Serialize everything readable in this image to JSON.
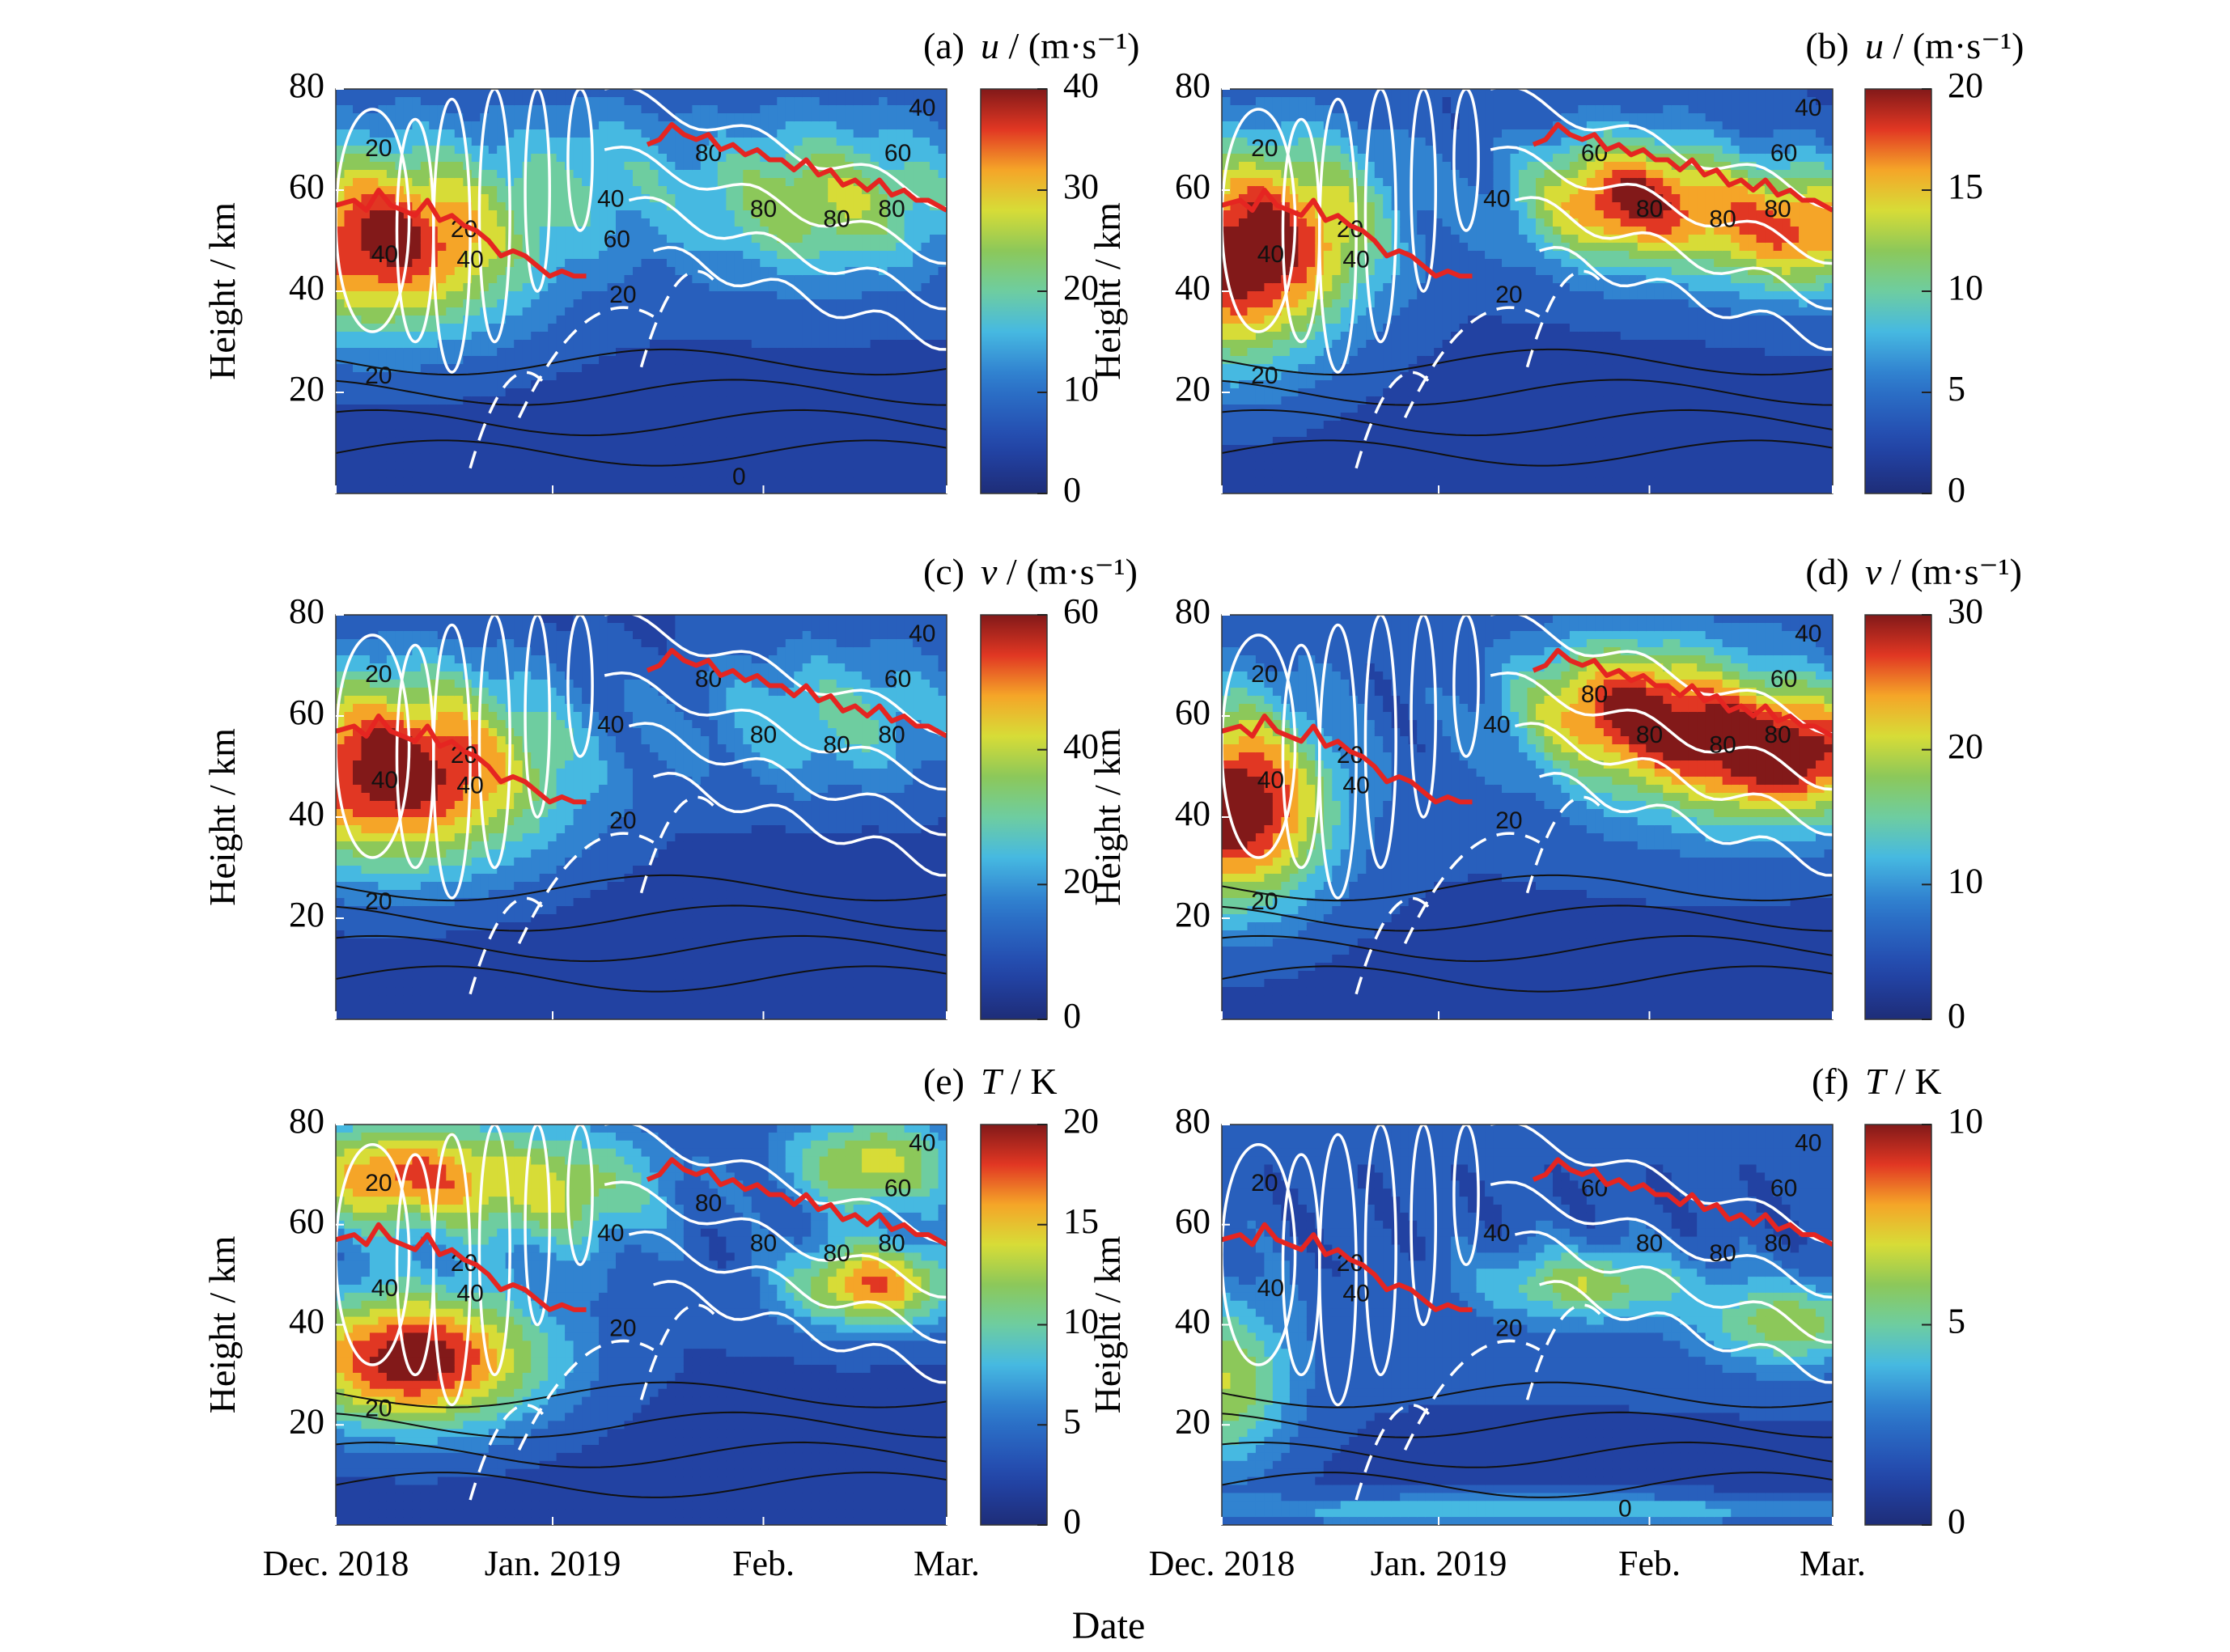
{
  "figure": {
    "xlabel": "Date",
    "ylabel": "Height / km",
    "x_ticks": [
      "Dec. 2018",
      "Jan. 2019",
      "Feb.",
      "Mar."
    ],
    "y_ticks": [
      20,
      40,
      60,
      80
    ]
  },
  "chart_data": [
    {
      "type": "heatmap",
      "panel": "(a)",
      "variable": "u",
      "unit": "/ (m·s⁻¹)",
      "colorbar": {
        "min": 0,
        "max": 40,
        "ticks": [
          0,
          10,
          20,
          30,
          40
        ]
      },
      "ylim": [
        0,
        80
      ],
      "x": [
        "Dec. 2018",
        "Jan. 2019",
        "Feb.",
        "Mar."
      ],
      "blobs": [
        {
          "t": 0.08,
          "z": 50,
          "peak": 34,
          "wt": 0.17,
          "wz": 13
        },
        {
          "t": 0.8,
          "z": 58,
          "peak": 20,
          "wt": 0.17,
          "wz": 11
        },
        {
          "t": 0.42,
          "z": 65,
          "peak": 8,
          "wt": 0.1,
          "wz": 10
        }
      ],
      "background": 6,
      "contour_labels": [
        {
          "t": 0.07,
          "z": 68,
          "text": "20"
        },
        {
          "t": 0.08,
          "z": 47,
          "text": "40"
        },
        {
          "t": 0.21,
          "z": 52,
          "text": "20"
        },
        {
          "t": 0.22,
          "z": 46,
          "text": "40"
        },
        {
          "t": 0.07,
          "z": 23,
          "text": "20"
        },
        {
          "t": 0.45,
          "z": 58,
          "text": "40"
        },
        {
          "t": 0.46,
          "z": 50,
          "text": "60"
        },
        {
          "t": 0.47,
          "z": 39,
          "text": "20"
        },
        {
          "t": 0.61,
          "z": 67,
          "text": "80"
        },
        {
          "t": 0.7,
          "z": 56,
          "text": "80"
        },
        {
          "t": 0.82,
          "z": 54,
          "text": "80"
        },
        {
          "t": 0.91,
          "z": 56,
          "text": "80"
        },
        {
          "t": 0.92,
          "z": 67,
          "text": "60"
        },
        {
          "t": 0.96,
          "z": 76,
          "text": "40"
        },
        {
          "t": 0.66,
          "z": 3,
          "text": "0"
        }
      ]
    },
    {
      "type": "heatmap",
      "panel": "(b)",
      "variable": "u",
      "unit": "/ (m·s⁻¹)",
      "colorbar": {
        "min": 0,
        "max": 20,
        "ticks": [
          0,
          5,
          10,
          15,
          20
        ]
      },
      "ylim": [
        0,
        80
      ],
      "x": [
        "Dec. 2018",
        "Jan. 2019",
        "Feb.",
        "Mar."
      ],
      "blobs": [
        {
          "t": 0.02,
          "z": 46,
          "peak": 17,
          "wt": 0.12,
          "wz": 15
        },
        {
          "t": 0.66,
          "z": 58,
          "peak": 16,
          "wt": 0.12,
          "wz": 9
        },
        {
          "t": 0.95,
          "z": 52,
          "peak": 14,
          "wt": 0.12,
          "wz": 9
        },
        {
          "t": 0.18,
          "z": 55,
          "peak": 6,
          "wt": 0.1,
          "wz": 12
        }
      ],
      "background": 3,
      "contour_labels": [
        {
          "t": 0.07,
          "z": 68,
          "text": "20"
        },
        {
          "t": 0.08,
          "z": 47,
          "text": "40"
        },
        {
          "t": 0.21,
          "z": 52,
          "text": "20"
        },
        {
          "t": 0.22,
          "z": 46,
          "text": "40"
        },
        {
          "t": 0.07,
          "z": 23,
          "text": "20"
        },
        {
          "t": 0.45,
          "z": 58,
          "text": "40"
        },
        {
          "t": 0.47,
          "z": 39,
          "text": "20"
        },
        {
          "t": 0.61,
          "z": 67,
          "text": "60"
        },
        {
          "t": 0.7,
          "z": 56,
          "text": "80"
        },
        {
          "t": 0.82,
          "z": 54,
          "text": "80"
        },
        {
          "t": 0.91,
          "z": 56,
          "text": "80"
        },
        {
          "t": 0.92,
          "z": 67,
          "text": "60"
        },
        {
          "t": 0.96,
          "z": 76,
          "text": "40"
        }
      ]
    },
    {
      "type": "heatmap",
      "panel": "(c)",
      "variable": "v",
      "unit": "/ (m·s⁻¹)",
      "colorbar": {
        "min": 0,
        "max": 60,
        "ticks": [
          0,
          20,
          40,
          60
        ]
      },
      "ylim": [
        0,
        80
      ],
      "x": [
        "Dec. 2018",
        "Jan. 2019",
        "Feb.",
        "Mar."
      ],
      "blobs": [
        {
          "t": 0.1,
          "z": 49,
          "peak": 56,
          "wt": 0.19,
          "wz": 14
        },
        {
          "t": 0.82,
          "z": 60,
          "peak": 21,
          "wt": 0.17,
          "wz": 11
        }
      ],
      "background": 7,
      "contour_labels": [
        {
          "t": 0.07,
          "z": 68,
          "text": "20"
        },
        {
          "t": 0.08,
          "z": 47,
          "text": "40"
        },
        {
          "t": 0.21,
          "z": 52,
          "text": "20"
        },
        {
          "t": 0.22,
          "z": 46,
          "text": "40"
        },
        {
          "t": 0.07,
          "z": 23,
          "text": "20"
        },
        {
          "t": 0.45,
          "z": 58,
          "text": "40"
        },
        {
          "t": 0.47,
          "z": 39,
          "text": "20"
        },
        {
          "t": 0.61,
          "z": 67,
          "text": "80"
        },
        {
          "t": 0.7,
          "z": 56,
          "text": "80"
        },
        {
          "t": 0.82,
          "z": 54,
          "text": "80"
        },
        {
          "t": 0.91,
          "z": 56,
          "text": "80"
        },
        {
          "t": 0.92,
          "z": 67,
          "text": "60"
        },
        {
          "t": 0.96,
          "z": 76,
          "text": "40"
        }
      ]
    },
    {
      "type": "heatmap",
      "panel": "(d)",
      "variable": "v",
      "unit": "/ (m·s⁻¹)",
      "colorbar": {
        "min": 0,
        "max": 30,
        "ticks": [
          0,
          10,
          20,
          30
        ]
      },
      "ylim": [
        0,
        80
      ],
      "x": [
        "Dec. 2018",
        "Jan. 2019",
        "Feb.",
        "Mar."
      ],
      "blobs": [
        {
          "t": 0.02,
          "z": 42,
          "peak": 28,
          "wt": 0.11,
          "wz": 14
        },
        {
          "t": 0.95,
          "z": 52,
          "peak": 20,
          "wt": 0.12,
          "wz": 9
        },
        {
          "t": 0.64,
          "z": 62,
          "peak": 17,
          "wt": 0.12,
          "wz": 9
        },
        {
          "t": 0.78,
          "z": 55,
          "peak": 13,
          "wt": 0.15,
          "wz": 12
        }
      ],
      "background": 5,
      "contour_labels": [
        {
          "t": 0.07,
          "z": 68,
          "text": "20"
        },
        {
          "t": 0.08,
          "z": 47,
          "text": "40"
        },
        {
          "t": 0.21,
          "z": 52,
          "text": "20"
        },
        {
          "t": 0.22,
          "z": 46,
          "text": "40"
        },
        {
          "t": 0.07,
          "z": 23,
          "text": "20"
        },
        {
          "t": 0.45,
          "z": 58,
          "text": "40"
        },
        {
          "t": 0.47,
          "z": 39,
          "text": "20"
        },
        {
          "t": 0.61,
          "z": 64,
          "text": "80"
        },
        {
          "t": 0.7,
          "z": 56,
          "text": "80"
        },
        {
          "t": 0.82,
          "z": 54,
          "text": "80"
        },
        {
          "t": 0.91,
          "z": 56,
          "text": "80"
        },
        {
          "t": 0.92,
          "z": 67,
          "text": "60"
        },
        {
          "t": 0.96,
          "z": 76,
          "text": "40"
        }
      ]
    },
    {
      "type": "heatmap",
      "panel": "(e)",
      "variable": "T",
      "unit": "/ K",
      "colorbar": {
        "min": 0,
        "max": 20,
        "ticks": [
          0,
          5,
          10,
          15,
          20
        ]
      },
      "ylim": [
        0,
        80
      ],
      "x": [
        "Dec. 2018",
        "Jan. 2019",
        "Feb.",
        "Mar."
      ],
      "blobs": [
        {
          "t": 0.13,
          "z": 33,
          "peak": 18,
          "wt": 0.15,
          "wz": 10
        },
        {
          "t": 0.1,
          "z": 70,
          "peak": 14,
          "wt": 0.13,
          "wz": 8
        },
        {
          "t": 0.88,
          "z": 48,
          "peak": 14,
          "wt": 0.1,
          "wz": 6
        },
        {
          "t": 0.88,
          "z": 72,
          "peak": 11,
          "wt": 0.1,
          "wz": 7
        },
        {
          "t": 0.38,
          "z": 67,
          "peak": 9,
          "wt": 0.12,
          "wz": 9
        }
      ],
      "background": 3,
      "contour_labels": [
        {
          "t": 0.07,
          "z": 68,
          "text": "20"
        },
        {
          "t": 0.08,
          "z": 47,
          "text": "40"
        },
        {
          "t": 0.21,
          "z": 52,
          "text": "20"
        },
        {
          "t": 0.22,
          "z": 46,
          "text": "40"
        },
        {
          "t": 0.07,
          "z": 23,
          "text": "20"
        },
        {
          "t": 0.45,
          "z": 58,
          "text": "40"
        },
        {
          "t": 0.47,
          "z": 39,
          "text": "20"
        },
        {
          "t": 0.61,
          "z": 64,
          "text": "80"
        },
        {
          "t": 0.7,
          "z": 56,
          "text": "80"
        },
        {
          "t": 0.82,
          "z": 54,
          "text": "80"
        },
        {
          "t": 0.91,
          "z": 56,
          "text": "80"
        },
        {
          "t": 0.92,
          "z": 67,
          "text": "60"
        },
        {
          "t": 0.96,
          "z": 76,
          "text": "40"
        }
      ]
    },
    {
      "type": "heatmap",
      "panel": "(f)",
      "variable": "T",
      "unit": "/ K",
      "colorbar": {
        "min": 0,
        "max": 10,
        "ticks": [
          0,
          5,
          10
        ]
      },
      "ylim": [
        0,
        80
      ],
      "x": [
        "Dec. 2018",
        "Jan. 2019",
        "Feb.",
        "Mar."
      ],
      "blobs": [
        {
          "t": 0.0,
          "z": 28,
          "peak": 5,
          "wt": 0.08,
          "wz": 12
        },
        {
          "t": 0.6,
          "z": 48,
          "peak": 4.5,
          "wt": 0.12,
          "wz": 5
        },
        {
          "t": 0.93,
          "z": 40,
          "peak": 4.5,
          "wt": 0.1,
          "wz": 6
        },
        {
          "t": 0.5,
          "z": 3,
          "peak": 3.5,
          "wt": 0.4,
          "wz": 2
        }
      ],
      "background": 1.8,
      "contour_labels": [
        {
          "t": 0.07,
          "z": 68,
          "text": "20"
        },
        {
          "t": 0.08,
          "z": 47,
          "text": "40"
        },
        {
          "t": 0.21,
          "z": 52,
          "text": "20"
        },
        {
          "t": 0.22,
          "z": 46,
          "text": "40"
        },
        {
          "t": 0.45,
          "z": 58,
          "text": "40"
        },
        {
          "t": 0.47,
          "z": 39,
          "text": "20"
        },
        {
          "t": 0.61,
          "z": 67,
          "text": "60"
        },
        {
          "t": 0.7,
          "z": 56,
          "text": "80"
        },
        {
          "t": 0.82,
          "z": 54,
          "text": "80"
        },
        {
          "t": 0.91,
          "z": 56,
          "text": "80"
        },
        {
          "t": 0.92,
          "z": 67,
          "text": "60"
        },
        {
          "t": 0.96,
          "z": 76,
          "text": "40"
        },
        {
          "t": 0.66,
          "z": 3,
          "text": "0"
        }
      ]
    }
  ],
  "red_line": {
    "segment1": [
      [
        0.0,
        57
      ],
      [
        0.03,
        58
      ],
      [
        0.05,
        56
      ],
      [
        0.07,
        60
      ],
      [
        0.09,
        57
      ],
      [
        0.11,
        56
      ],
      [
        0.13,
        55
      ],
      [
        0.15,
        58
      ],
      [
        0.17,
        54
      ],
      [
        0.19,
        55
      ],
      [
        0.21,
        53
      ],
      [
        0.23,
        52
      ],
      [
        0.25,
        50
      ],
      [
        0.27,
        47
      ],
      [
        0.29,
        48
      ],
      [
        0.31,
        47
      ],
      [
        0.33,
        45
      ],
      [
        0.35,
        43
      ],
      [
        0.37,
        44
      ],
      [
        0.39,
        43
      ],
      [
        0.41,
        43
      ]
    ],
    "segment2": [
      [
        0.51,
        69
      ],
      [
        0.53,
        70
      ],
      [
        0.55,
        73
      ],
      [
        0.57,
        71
      ],
      [
        0.59,
        70
      ],
      [
        0.61,
        71
      ],
      [
        0.63,
        68
      ],
      [
        0.65,
        69
      ],
      [
        0.67,
        67
      ],
      [
        0.69,
        68
      ],
      [
        0.71,
        66
      ],
      [
        0.73,
        66
      ],
      [
        0.75,
        64
      ],
      [
        0.77,
        66
      ],
      [
        0.79,
        63
      ],
      [
        0.81,
        64
      ],
      [
        0.83,
        61
      ],
      [
        0.85,
        62
      ],
      [
        0.87,
        60
      ],
      [
        0.89,
        62
      ],
      [
        0.91,
        59
      ],
      [
        0.93,
        60
      ],
      [
        0.95,
        58
      ],
      [
        0.97,
        58
      ],
      [
        1.0,
        56
      ]
    ]
  },
  "colors": {
    "red_line": "#e52521",
    "contour_white": "#ffffff",
    "contour_black": "#111111"
  }
}
